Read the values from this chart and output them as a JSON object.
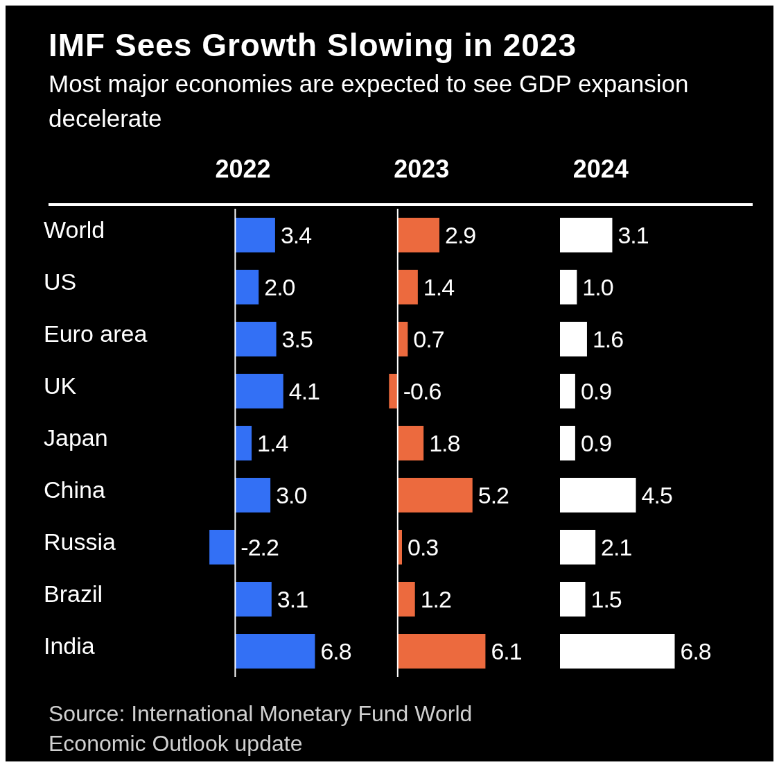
{
  "chart_data": [
    {
      "type": "bar",
      "orientation": "horizontal",
      "title": "IMF Sees Growth Slowing in 2023",
      "subtitle": "Most major economies are expected to see GDP expansion decelerate",
      "xlabel": "2022",
      "annotations": [
        "Source: International Monetary Fund World Economic Outlook update"
      ],
      "categories": [
        "World",
        "US",
        "Euro area",
        "UK",
        "Japan",
        "China",
        "Russia",
        "Brazil",
        "India"
      ],
      "values": [
        3.4,
        2.0,
        3.5,
        4.1,
        1.4,
        3.0,
        -2.2,
        3.1,
        6.8
      ],
      "value_labels": [
        "3.4",
        "2.0",
        "3.5",
        "4.1",
        "1.4",
        "3.0",
        "-2.2",
        "3.1",
        "6.8"
      ],
      "color": "#3370f5",
      "tick_labels": "y",
      "ref_lines": [
        {
          "axis": "x",
          "value": 0,
          "color": "#ffffff"
        }
      ]
    },
    {
      "type": "bar",
      "orientation": "horizontal",
      "xlabel": "2023",
      "categories": [
        null,
        null,
        null,
        null,
        null,
        null,
        null,
        null,
        null
      ],
      "values": [
        2.9,
        1.4,
        0.7,
        -0.6,
        1.8,
        5.2,
        0.3,
        1.2,
        6.1
      ],
      "value_labels": [
        "2.9",
        "1.4",
        "0.7",
        "-0.6",
        "1.8",
        "5.2",
        "0.3",
        "1.2",
        "6.1"
      ],
      "color": "#ec6a3e",
      "tick_labels": false,
      "ref_lines": [
        {
          "axis": "x",
          "value": 0,
          "color": "#ffffff"
        }
      ]
    },
    {
      "type": "bar",
      "orientation": "horizontal",
      "xlabel": "2024",
      "categories": [
        null,
        null,
        null,
        null,
        null,
        null,
        null,
        null,
        null
      ],
      "values": [
        3.1,
        1.0,
        1.6,
        0.9,
        0.9,
        4.5,
        2.1,
        1.5,
        6.8
      ],
      "value_labels": [
        "3.1",
        "1.0",
        "1.6",
        "0.9",
        "0.9",
        "4.5",
        "2.1",
        "1.5",
        "6.8"
      ],
      "color": "#ffffff",
      "tick_labels": false
    }
  ]
}
